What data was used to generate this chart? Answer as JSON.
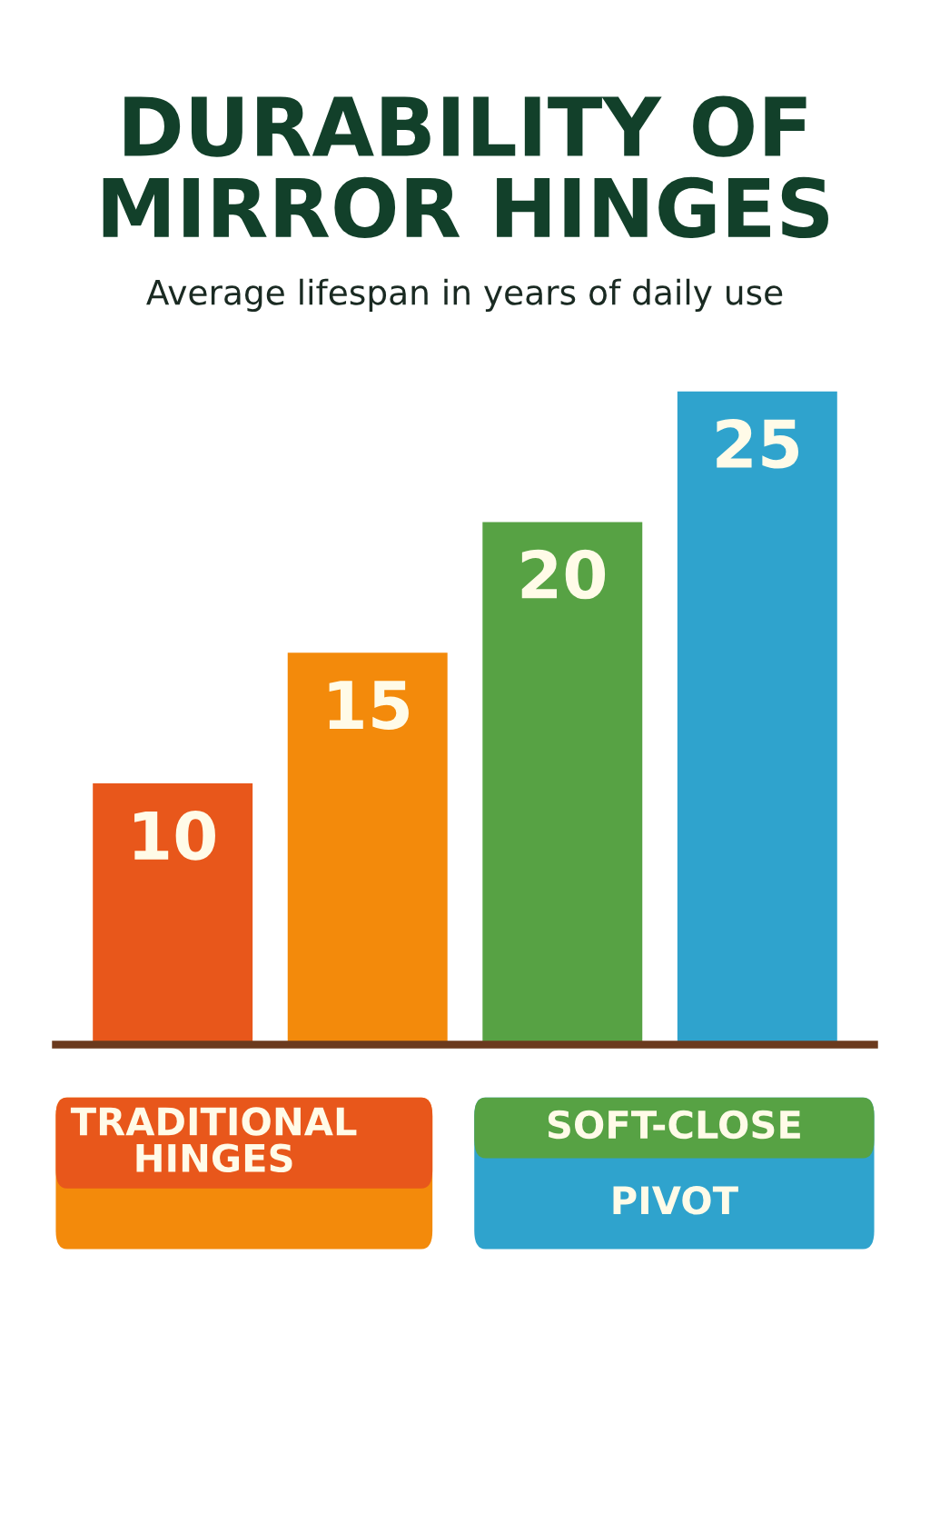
{
  "chart_data": {
    "type": "bar",
    "title": "DURABILITY OF\nMIRROR HINGES",
    "subtitle": "Average lifespan in years of daily use",
    "categories": [
      null,
      null,
      null,
      null
    ],
    "values": [
      10,
      15,
      20,
      25
    ],
    "colors": [
      "#e8571b",
      "#f38a0b",
      "#57a244",
      "#2fa3cd"
    ],
    "data_labels": true,
    "grid": false,
    "legend": false,
    "annotations": [
      "TRADITIONAL\nHINGES",
      "SOFT-CLOSE",
      "PIVOT"
    ]
  }
}
